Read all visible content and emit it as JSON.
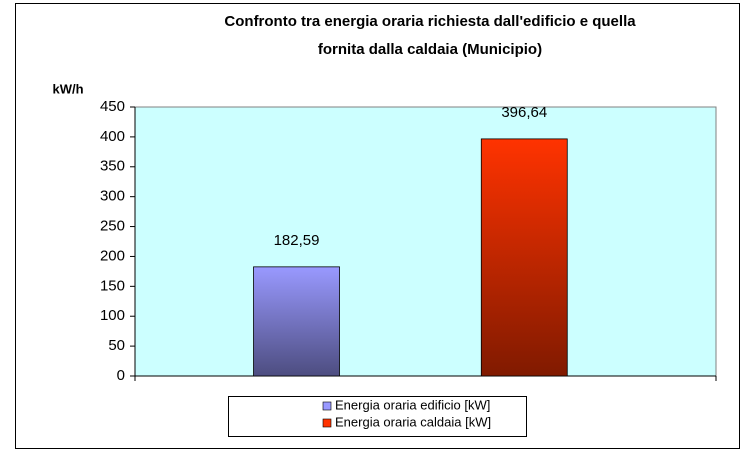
{
  "chart_data": {
    "type": "bar",
    "title": [
      "Confronto tra energia oraria richiesta dall'edificio e quella",
      "fornita dalla caldaia (Municipio)"
    ],
    "y_label": "kW/h",
    "categories": [
      null
    ],
    "series": [
      {
        "name": "Energia oraria edificio [kW]",
        "color": "#9999ff",
        "values": [
          182.59
        ],
        "value_labels": [
          "182,59"
        ]
      },
      {
        "name": "Energia oraria caldaia [kW]",
        "color": "#ff3300",
        "values": [
          396.64
        ],
        "value_labels": [
          "396,64"
        ]
      }
    ],
    "ylim": [
      0,
      450
    ],
    "yticks": [
      0,
      50,
      100,
      150,
      200,
      250,
      300,
      350,
      400,
      450
    ],
    "grid": false,
    "plot_background": "#ccffff",
    "legend": "bottom"
  }
}
